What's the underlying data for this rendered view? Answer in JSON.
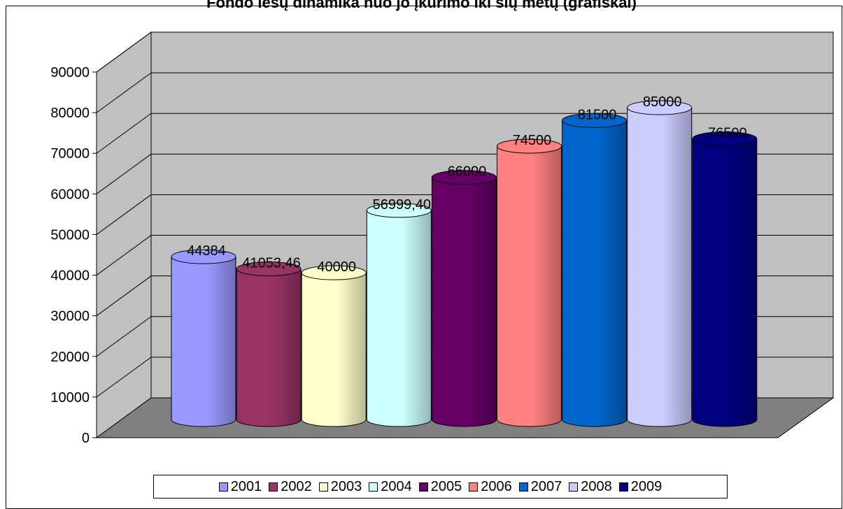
{
  "chart_data": {
    "type": "bar",
    "title": "Fondo lėšų dinamika nuo jo įkūrimo iki šių metų (grafiškai)",
    "categories": [
      "2001",
      "2002",
      "2003",
      "2004",
      "2005",
      "2006",
      "2007",
      "2008",
      "2009"
    ],
    "series": [
      {
        "name": "2001",
        "value": 44384,
        "label": "44384",
        "color": "#9999ff"
      },
      {
        "name": "2002",
        "value": 41053.46,
        "label": "41053,46",
        "color": "#993366"
      },
      {
        "name": "2003",
        "value": 40000,
        "label": "40000",
        "color": "#ffffcc"
      },
      {
        "name": "2004",
        "value": 56999.4,
        "label": "56999,40",
        "color": "#ccffff"
      },
      {
        "name": "2005",
        "value": 66000,
        "label": "66000",
        "color": "#660066"
      },
      {
        "name": "2006",
        "value": 74500,
        "label": "74500",
        "color": "#ff8080"
      },
      {
        "name": "2007",
        "value": 81500,
        "label": "81500",
        "color": "#0066cc"
      },
      {
        "name": "2008",
        "value": 85000,
        "label": "85000",
        "color": "#ccccff"
      },
      {
        "name": "2009",
        "value": 76500,
        "label": "76500",
        "color": "#000080"
      }
    ],
    "yticks": [
      "0",
      "10000",
      "20000",
      "30000",
      "40000",
      "50000",
      "60000",
      "70000",
      "80000",
      "90000"
    ],
    "ylim": [
      0,
      90000
    ],
    "grid": true,
    "style": "3d-cylinder",
    "legend": "bottom",
    "wall_color": "#c0c0c0",
    "floor_color": "#808080"
  }
}
